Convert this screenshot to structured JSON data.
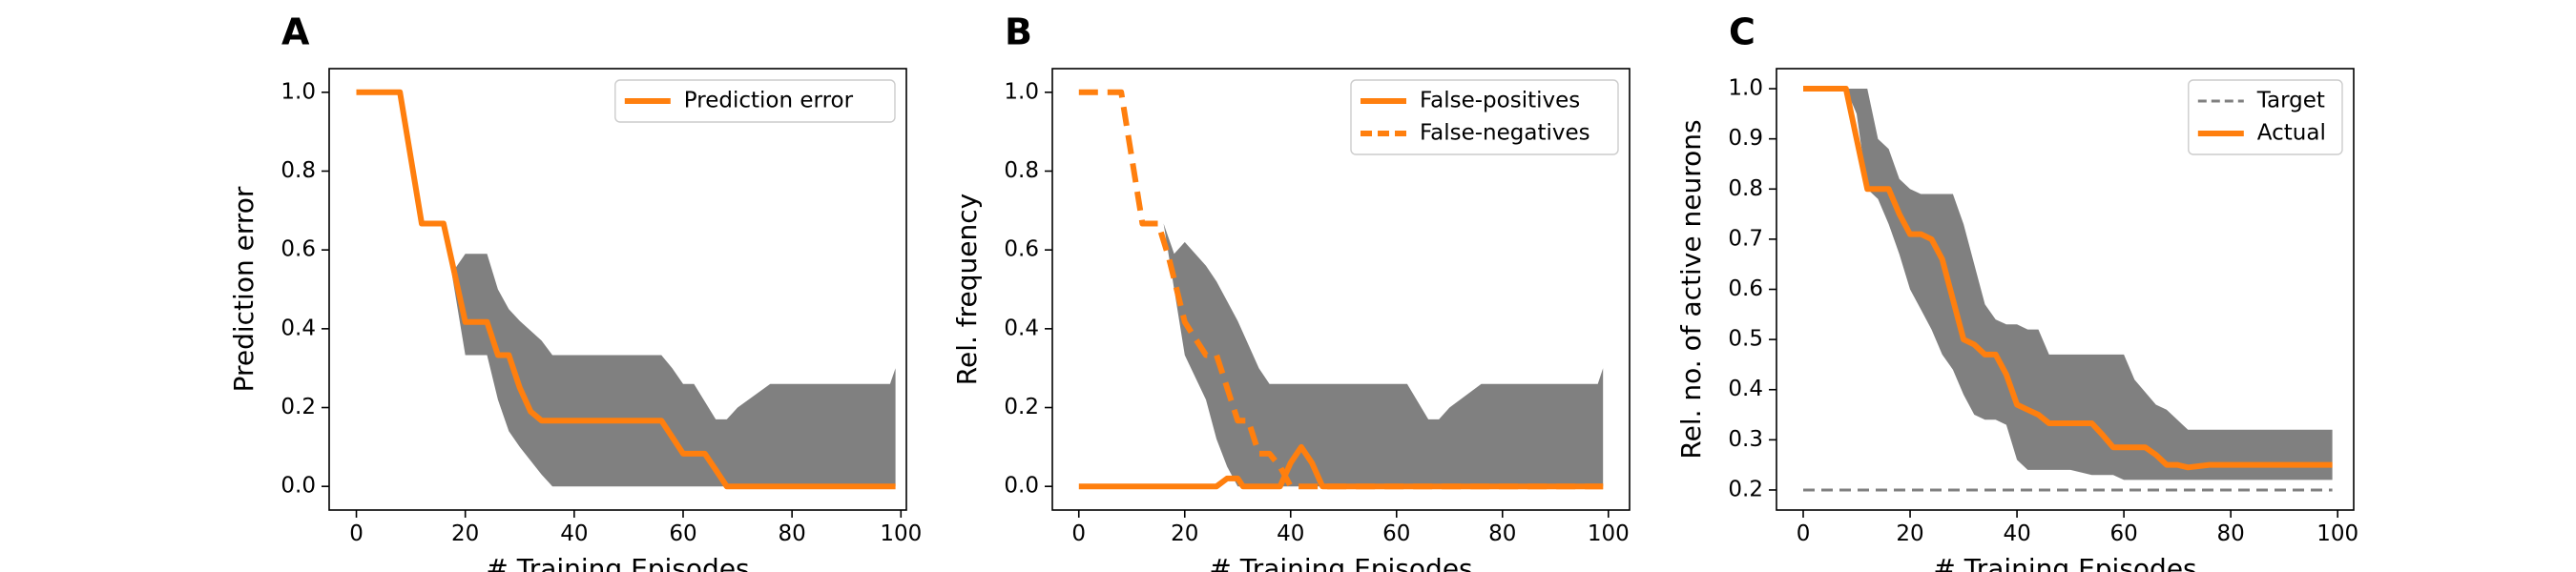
{
  "chart_data": [
    {
      "type": "line",
      "panel_label": "A",
      "xlabel": "# Training Episodes",
      "ylabel": "Prediction error",
      "xlim": [
        -5,
        101
      ],
      "ylim": [
        -0.06,
        1.06
      ],
      "xticks": [
        0,
        20,
        40,
        60,
        80,
        100
      ],
      "yticks": [
        0.0,
        0.2,
        0.4,
        0.6,
        0.8,
        1.0
      ],
      "xtick_labels": [
        "0",
        "20",
        "40",
        "60",
        "80",
        "100"
      ],
      "ytick_labels": [
        "0.0",
        "0.2",
        "0.4",
        "0.6",
        "0.8",
        "1.0"
      ],
      "legend_position": "top-right",
      "band": {
        "color": "#808080",
        "x": [
          0,
          8,
          12,
          16,
          18,
          20,
          24,
          26,
          28,
          30,
          34,
          36,
          40,
          44,
          48,
          52,
          56,
          58,
          60,
          62,
          66,
          68,
          70,
          76,
          80,
          84,
          88,
          92,
          96,
          98,
          99
        ],
        "upper": [
          1.0,
          1.0,
          0.667,
          0.667,
          0.55,
          0.59,
          0.59,
          0.5,
          0.45,
          0.42,
          0.37,
          0.333,
          0.333,
          0.333,
          0.333,
          0.333,
          0.333,
          0.3,
          0.26,
          0.26,
          0.17,
          0.17,
          0.2,
          0.26,
          0.26,
          0.26,
          0.26,
          0.26,
          0.26,
          0.26,
          0.3
        ],
        "lower": [
          1.0,
          1.0,
          0.667,
          0.667,
          0.5,
          0.333,
          0.333,
          0.22,
          0.14,
          0.1,
          0.03,
          0.0,
          0.0,
          0.0,
          0.0,
          0.0,
          0.0,
          0.0,
          0.0,
          0.0,
          0.0,
          0.0,
          0.0,
          0.0,
          0.0,
          0.0,
          0.0,
          0.0,
          0.0,
          0.0,
          0.0
        ]
      },
      "series": [
        {
          "name": "Prediction error",
          "color": "#ff7f0e",
          "dash": "solid",
          "x": [
            0,
            8,
            12,
            16,
            20,
            24,
            26,
            28,
            30,
            32,
            34,
            36,
            40,
            44,
            48,
            52,
            56,
            58,
            60,
            64,
            66,
            68,
            70,
            80,
            90,
            99
          ],
          "y": [
            1.0,
            1.0,
            0.667,
            0.667,
            0.417,
            0.417,
            0.333,
            0.333,
            0.25,
            0.19,
            0.167,
            0.167,
            0.167,
            0.167,
            0.167,
            0.167,
            0.167,
            0.125,
            0.083,
            0.083,
            0.042,
            0.0,
            0.0,
            0.0,
            0.0,
            0.0
          ]
        }
      ]
    },
    {
      "type": "line",
      "panel_label": "B",
      "xlabel": "# Training Episodes",
      "ylabel": "Rel. frequency",
      "xlim": [
        -5,
        104
      ],
      "ylim": [
        -0.06,
        1.06
      ],
      "xticks": [
        0,
        20,
        40,
        60,
        80,
        100
      ],
      "yticks": [
        0.0,
        0.2,
        0.4,
        0.6,
        0.8,
        1.0
      ],
      "xtick_labels": [
        "0",
        "20",
        "40",
        "60",
        "80",
        "100"
      ],
      "ytick_labels": [
        "0.0",
        "0.2",
        "0.4",
        "0.6",
        "0.8",
        "1.0"
      ],
      "legend_position": "top-right",
      "band": {
        "color": "#808080",
        "x": [
          0,
          8,
          12,
          16,
          18,
          20,
          24,
          26,
          28,
          30,
          34,
          36,
          40,
          44,
          48,
          52,
          56,
          58,
          60,
          62,
          66,
          68,
          70,
          76,
          80,
          84,
          88,
          92,
          96,
          98,
          99
        ],
        "upper": [
          1.0,
          1.0,
          0.667,
          0.667,
          0.59,
          0.62,
          0.56,
          0.52,
          0.47,
          0.42,
          0.3,
          0.26,
          0.26,
          0.26,
          0.26,
          0.26,
          0.26,
          0.26,
          0.26,
          0.26,
          0.17,
          0.17,
          0.2,
          0.26,
          0.26,
          0.26,
          0.26,
          0.26,
          0.26,
          0.26,
          0.3
        ],
        "lower": [
          1.0,
          1.0,
          0.667,
          0.667,
          0.5,
          0.333,
          0.22,
          0.12,
          0.05,
          0.0,
          0.0,
          0.0,
          0.0,
          0.0,
          0.0,
          0.0,
          0.0,
          0.0,
          0.0,
          0.0,
          0.0,
          0.0,
          0.0,
          0.0,
          0.0,
          0.0,
          0.0,
          0.0,
          0.0,
          0.0,
          0.0
        ]
      },
      "series": [
        {
          "name": "False-positives",
          "color": "#ff7f0e",
          "dash": "solid",
          "x": [
            0,
            10,
            20,
            26,
            28,
            30,
            31,
            32,
            34,
            36,
            38,
            40,
            42,
            44,
            46,
            50,
            60,
            80,
            99
          ],
          "y": [
            0.0,
            0.0,
            0.0,
            0.0,
            0.02,
            0.02,
            0.0,
            0.0,
            0.0,
            0.0,
            0.0,
            0.06,
            0.1,
            0.06,
            0.0,
            0.0,
            0.0,
            0.0,
            0.0
          ]
        },
        {
          "name": "False-negatives",
          "color": "#ff7f0e",
          "dash": "dashed",
          "x": [
            0,
            8,
            12,
            15,
            17,
            20,
            24,
            26,
            28,
            30,
            32,
            34,
            36,
            38,
            40,
            42,
            50,
            60,
            80,
            99
          ],
          "y": [
            1.0,
            1.0,
            0.667,
            0.667,
            0.58,
            0.417,
            0.333,
            0.333,
            0.25,
            0.167,
            0.167,
            0.083,
            0.083,
            0.05,
            0.0,
            0.0,
            0.0,
            0.0,
            0.0,
            0.0
          ]
        }
      ]
    },
    {
      "type": "line",
      "panel_label": "C",
      "xlabel": "# Training Episodes",
      "ylabel": "Rel. no. of active neurons",
      "xlim": [
        -5,
        103
      ],
      "ylim": [
        0.16,
        1.04
      ],
      "xticks": [
        0,
        20,
        40,
        60,
        80,
        100
      ],
      "yticks": [
        0.2,
        0.3,
        0.4,
        0.5,
        0.6,
        0.7,
        0.8,
        0.9,
        1.0
      ],
      "xtick_labels": [
        "0",
        "20",
        "40",
        "60",
        "80",
        "100"
      ],
      "ytick_labels": [
        "0.2",
        "0.3",
        "0.4",
        "0.5",
        "0.6",
        "0.7",
        "0.8",
        "0.9",
        "1.0"
      ],
      "legend_position": "top-right",
      "band": {
        "color": "#808080",
        "x": [
          0,
          8,
          10,
          12,
          14,
          16,
          18,
          20,
          22,
          24,
          26,
          28,
          30,
          32,
          34,
          36,
          38,
          40,
          42,
          44,
          46,
          50,
          54,
          58,
          60,
          62,
          66,
          68,
          70,
          72,
          76,
          80,
          90,
          99
        ],
        "upper": [
          1.0,
          1.0,
          1.0,
          1.0,
          0.9,
          0.88,
          0.82,
          0.8,
          0.79,
          0.79,
          0.79,
          0.79,
          0.73,
          0.65,
          0.57,
          0.54,
          0.53,
          0.53,
          0.52,
          0.52,
          0.47,
          0.47,
          0.47,
          0.47,
          0.47,
          0.42,
          0.37,
          0.36,
          0.34,
          0.32,
          0.32,
          0.32,
          0.32,
          0.32
        ],
        "lower": [
          1.0,
          1.0,
          0.95,
          0.8,
          0.78,
          0.73,
          0.67,
          0.6,
          0.56,
          0.52,
          0.47,
          0.44,
          0.39,
          0.35,
          0.34,
          0.34,
          0.33,
          0.26,
          0.24,
          0.24,
          0.24,
          0.24,
          0.23,
          0.23,
          0.22,
          0.22,
          0.22,
          0.22,
          0.22,
          0.22,
          0.22,
          0.22,
          0.22,
          0.22
        ]
      },
      "series": [
        {
          "name": "Target",
          "color": "#808080",
          "dash": "dashed",
          "x": [
            0,
            99
          ],
          "y": [
            0.2,
            0.2
          ]
        },
        {
          "name": "Actual",
          "color": "#ff7f0e",
          "dash": "solid",
          "x": [
            0,
            8,
            10,
            12,
            16,
            18,
            20,
            22,
            24,
            26,
            28,
            30,
            32,
            34,
            36,
            38,
            40,
            42,
            44,
            46,
            50,
            54,
            56,
            58,
            60,
            64,
            66,
            68,
            70,
            72,
            76,
            80,
            90,
            99
          ],
          "y": [
            1.0,
            1.0,
            0.9,
            0.8,
            0.8,
            0.75,
            0.71,
            0.71,
            0.7,
            0.66,
            0.58,
            0.5,
            0.49,
            0.47,
            0.47,
            0.43,
            0.37,
            0.36,
            0.35,
            0.333,
            0.333,
            0.333,
            0.31,
            0.285,
            0.285,
            0.285,
            0.27,
            0.25,
            0.25,
            0.245,
            0.25,
            0.25,
            0.25,
            0.25
          ]
        }
      ]
    }
  ]
}
